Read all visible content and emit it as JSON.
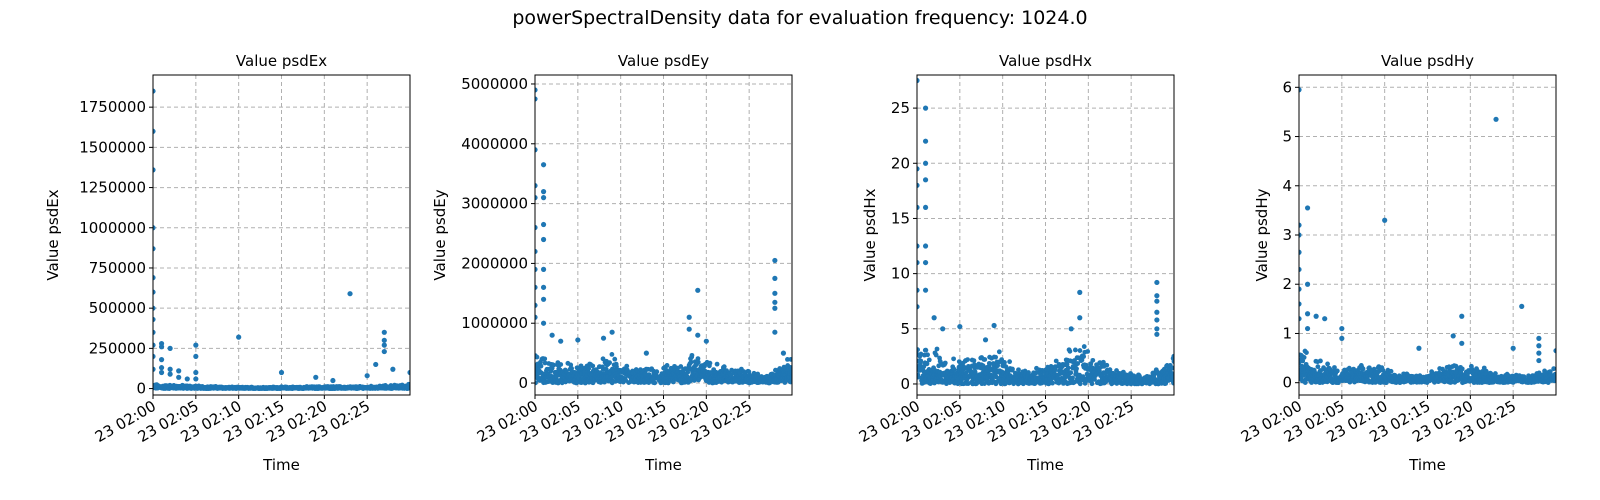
{
  "suptitle": "powerSpectralDensity data for evaluation frequency: 1024.0",
  "colors": {
    "series": "#1f77b4",
    "grid": "#b0b0b0",
    "axis": "#000000",
    "background": "#ffffff"
  },
  "chart_data": [
    {
      "type": "scatter",
      "title": "Value psdEx",
      "xlabel": "Time",
      "ylabel": "Value psdEx",
      "grid": true,
      "xlim": [
        "23 02:00",
        "23 02:30"
      ],
      "ylim": [
        -40000,
        1950000
      ],
      "xticks": [
        "23 02:00",
        "23 02:05",
        "23 02:10",
        "23 02:15",
        "23 02:20",
        "23 02:25"
      ],
      "yticks": [
        0,
        250000,
        500000,
        750000,
        1000000,
        1250000,
        1500000,
        1750000
      ],
      "ytick_labels": [
        "0",
        "250000",
        "500000",
        "750000",
        "1000000",
        "1250000",
        "1500000",
        "1750000"
      ],
      "series": [
        {
          "points": [
            [
              "23 02:00",
              1850000
            ],
            [
              "23 02:00",
              1600000
            ],
            [
              "23 02:00",
              1360000
            ],
            [
              "23 02:00",
              1000000
            ],
            [
              "23 02:00",
              870000
            ],
            [
              "23 02:00",
              690000
            ],
            [
              "23 02:00",
              600000
            ],
            [
              "23 02:00",
              500000
            ],
            [
              "23 02:00",
              430000
            ],
            [
              "23 02:00",
              350000
            ],
            [
              "23 02:00",
              270000
            ],
            [
              "23 02:00",
              200000
            ],
            [
              "23 02:00",
              120000
            ],
            [
              "23 02:01",
              280000
            ],
            [
              "23 02:01",
              260000
            ],
            [
              "23 02:01",
              180000
            ],
            [
              "23 02:01",
              130000
            ],
            [
              "23 02:01",
              100000
            ],
            [
              "23 02:02",
              250000
            ],
            [
              "23 02:02",
              120000
            ],
            [
              "23 02:02",
              90000
            ],
            [
              "23 02:03",
              110000
            ],
            [
              "23 02:03",
              70000
            ],
            [
              "23 02:04",
              60000
            ],
            [
              "23 02:05",
              270000
            ],
            [
              "23 02:05",
              200000
            ],
            [
              "23 02:05",
              100000
            ],
            [
              "23 02:05",
              60000
            ],
            [
              "23 02:10",
              320000
            ],
            [
              "23 02:15",
              100000
            ],
            [
              "23 02:19",
              70000
            ],
            [
              "23 02:21",
              50000
            ],
            [
              "23 02:23",
              590000
            ],
            [
              "23 02:25",
              80000
            ],
            [
              "23 02:26",
              150000
            ],
            [
              "23 02:27",
              350000
            ],
            [
              "23 02:27",
              300000
            ],
            [
              "23 02:27",
              270000
            ],
            [
              "23 02:27",
              230000
            ],
            [
              "23 02:28",
              120000
            ],
            [
              "23 02:30",
              100000
            ]
          ],
          "baseline": [
            [
              0,
              30000
            ],
            [
              5,
              20000
            ],
            [
              10,
              10000
            ],
            [
              15,
              12000
            ],
            [
              20,
              15000
            ],
            [
              25,
              15000
            ],
            [
              30,
              30000
            ]
          ]
        }
      ]
    },
    {
      "type": "scatter",
      "title": "Value psdEy",
      "xlabel": "Time",
      "ylabel": "Value psdEy",
      "grid": true,
      "xlim": [
        "23 02:00",
        "23 02:30"
      ],
      "ylim": [
        -200000,
        5150000
      ],
      "xticks": [
        "23 02:00",
        "23 02:05",
        "23 02:10",
        "23 02:15",
        "23 02:20",
        "23 02:25"
      ],
      "yticks": [
        0,
        1000000,
        2000000,
        3000000,
        4000000,
        5000000
      ],
      "ytick_labels": [
        "0",
        "1000000",
        "2000000",
        "3000000",
        "4000000",
        "5000000"
      ],
      "series": [
        {
          "points": [
            [
              "23 02:00",
              4900000
            ],
            [
              "23 02:00",
              4750000
            ],
            [
              "23 02:00",
              3900000
            ],
            [
              "23 02:00",
              3300000
            ],
            [
              "23 02:00",
              3100000
            ],
            [
              "23 02:00",
              2600000
            ],
            [
              "23 02:00",
              2200000
            ],
            [
              "23 02:00",
              1900000
            ],
            [
              "23 02:00",
              1600000
            ],
            [
              "23 02:00",
              1300000
            ],
            [
              "23 02:00",
              1100000
            ],
            [
              "23 02:01",
              3650000
            ],
            [
              "23 02:01",
              3200000
            ],
            [
              "23 02:01",
              3100000
            ],
            [
              "23 02:01",
              2650000
            ],
            [
              "23 02:01",
              2400000
            ],
            [
              "23 02:01",
              1900000
            ],
            [
              "23 02:01",
              1600000
            ],
            [
              "23 02:01",
              1400000
            ],
            [
              "23 02:01",
              1000000
            ],
            [
              "23 02:02",
              800000
            ],
            [
              "23 02:03",
              700000
            ],
            [
              "23 02:05",
              720000
            ],
            [
              "23 02:08",
              750000
            ],
            [
              "23 02:09",
              850000
            ],
            [
              "23 02:13",
              500000
            ],
            [
              "23 02:18",
              900000
            ],
            [
              "23 02:18",
              1100000
            ],
            [
              "23 02:19",
              1550000
            ],
            [
              "23 02:19",
              800000
            ],
            [
              "23 02:20",
              700000
            ],
            [
              "23 02:28",
              2050000
            ],
            [
              "23 02:28",
              1750000
            ],
            [
              "23 02:28",
              1500000
            ],
            [
              "23 02:28",
              1350000
            ],
            [
              "23 02:28",
              1250000
            ],
            [
              "23 02:28",
              850000
            ],
            [
              "23 02:29",
              500000
            ]
          ],
          "baseline": [
            [
              0,
              550000
            ],
            [
              2,
              450000
            ],
            [
              5,
              330000
            ],
            [
              7,
              380000
            ],
            [
              9,
              500000
            ],
            [
              11,
              300000
            ],
            [
              13,
              250000
            ],
            [
              15,
              300000
            ],
            [
              17,
              400000
            ],
            [
              19,
              650000
            ],
            [
              20,
              400000
            ],
            [
              23,
              320000
            ],
            [
              25,
              220000
            ],
            [
              27,
              120000
            ],
            [
              29,
              380000
            ],
            [
              30,
              500000
            ]
          ]
        }
      ]
    },
    {
      "type": "scatter",
      "title": "Value psdHx",
      "xlabel": "Time",
      "ylabel": "Value psdHx",
      "grid": true,
      "xlim": [
        "23 02:00",
        "23 02:30"
      ],
      "ylim": [
        -1,
        28
      ],
      "xticks": [
        "23 02:00",
        "23 02:05",
        "23 02:10",
        "23 02:15",
        "23 02:20",
        "23 02:25"
      ],
      "yticks": [
        0,
        5,
        10,
        15,
        20,
        25
      ],
      "ytick_labels": [
        "0",
        "5",
        "10",
        "15",
        "20",
        "25"
      ],
      "series": [
        {
          "points": [
            [
              "23 02:00",
              27.5
            ],
            [
              "23 02:00",
              19.5
            ],
            [
              "23 02:00",
              18
            ],
            [
              "23 02:00",
              16
            ],
            [
              "23 02:00",
              12.5
            ],
            [
              "23 02:00",
              11
            ],
            [
              "23 02:00",
              8.5
            ],
            [
              "23 02:00",
              7
            ],
            [
              "23 02:01",
              25
            ],
            [
              "23 02:01",
              22
            ],
            [
              "23 02:01",
              20
            ],
            [
              "23 02:01",
              18.5
            ],
            [
              "23 02:01",
              16
            ],
            [
              "23 02:01",
              12.5
            ],
            [
              "23 02:01",
              11
            ],
            [
              "23 02:01",
              8.5
            ],
            [
              "23 02:02",
              6
            ],
            [
              "23 02:03",
              5
            ],
            [
              "23 02:05",
              5.2
            ],
            [
              "23 02:08",
              4
            ],
            [
              "23 02:09",
              5.3
            ],
            [
              "23 02:18",
              5
            ],
            [
              "23 02:19",
              8.3
            ],
            [
              "23 02:19",
              6
            ],
            [
              "23 02:28",
              9.2
            ],
            [
              "23 02:28",
              8
            ],
            [
              "23 02:28",
              7.5
            ],
            [
              "23 02:28",
              6.5
            ],
            [
              "23 02:28",
              5.8
            ],
            [
              "23 02:28",
              5
            ],
            [
              "23 02:28",
              4.5
            ],
            [
              "23 02:30",
              2.5
            ]
          ],
          "baseline": [
            [
              0,
              4
            ],
            [
              2,
              3.5
            ],
            [
              5,
              2.5
            ],
            [
              7,
              2.8
            ],
            [
              9,
              3.5
            ],
            [
              11,
              2
            ],
            [
              13,
              1.5
            ],
            [
              15,
              1.8
            ],
            [
              17,
              2.8
            ],
            [
              19,
              4.5
            ],
            [
              20,
              3
            ],
            [
              23,
              1.8
            ],
            [
              25,
              1.2
            ],
            [
              27,
              0.8
            ],
            [
              29,
              2.3
            ],
            [
              30,
              2.8
            ]
          ]
        }
      ]
    },
    {
      "type": "scatter",
      "title": "Value psdHy",
      "xlabel": "Time",
      "ylabel": "Value psdHy",
      "grid": true,
      "xlim": [
        "23 02:00",
        "23 02:30"
      ],
      "ylim": [
        -0.25,
        6.25
      ],
      "xticks": [
        "23 02:00",
        "23 02:05",
        "23 02:10",
        "23 02:15",
        "23 02:20",
        "23 02:25"
      ],
      "yticks": [
        0,
        1,
        2,
        3,
        4,
        5,
        6
      ],
      "ytick_labels": [
        "0",
        "1",
        "2",
        "3",
        "4",
        "5",
        "6"
      ],
      "series": [
        {
          "points": [
            [
              "23 02:00",
              5.95
            ],
            [
              "23 02:00",
              3.2
            ],
            [
              "23 02:00",
              3.0
            ],
            [
              "23 02:00",
              2.65
            ],
            [
              "23 02:00",
              2.3
            ],
            [
              "23 02:00",
              1.9
            ],
            [
              "23 02:00",
              1.6
            ],
            [
              "23 02:00",
              1.3
            ],
            [
              "23 02:01",
              3.55
            ],
            [
              "23 02:01",
              2.0
            ],
            [
              "23 02:01",
              1.4
            ],
            [
              "23 02:01",
              1.1
            ],
            [
              "23 02:02",
              1.35
            ],
            [
              "23 02:03",
              1.3
            ],
            [
              "23 02:05",
              1.1
            ],
            [
              "23 02:05",
              0.9
            ],
            [
              "23 02:10",
              3.3
            ],
            [
              "23 02:14",
              0.7
            ],
            [
              "23 02:18",
              0.95
            ],
            [
              "23 02:19",
              1.35
            ],
            [
              "23 02:19",
              0.8
            ],
            [
              "23 02:23",
              5.35
            ],
            [
              "23 02:25",
              0.7
            ],
            [
              "23 02:26",
              1.55
            ],
            [
              "23 02:28",
              0.9
            ],
            [
              "23 02:28",
              0.75
            ],
            [
              "23 02:28",
              0.6
            ],
            [
              "23 02:28",
              0.45
            ],
            [
              "23 02:30",
              0.65
            ]
          ],
          "baseline": [
            [
              0,
              0.9
            ],
            [
              2,
              0.6
            ],
            [
              5,
              0.3
            ],
            [
              7,
              0.35
            ],
            [
              9,
              0.45
            ],
            [
              11,
              0.25
            ],
            [
              13,
              0.2
            ],
            [
              15,
              0.25
            ],
            [
              17,
              0.35
            ],
            [
              19,
              0.55
            ],
            [
              20,
              0.4
            ],
            [
              23,
              0.25
            ],
            [
              25,
              0.2
            ],
            [
              27,
              0.15
            ],
            [
              29,
              0.35
            ],
            [
              30,
              0.4
            ]
          ]
        }
      ]
    }
  ]
}
